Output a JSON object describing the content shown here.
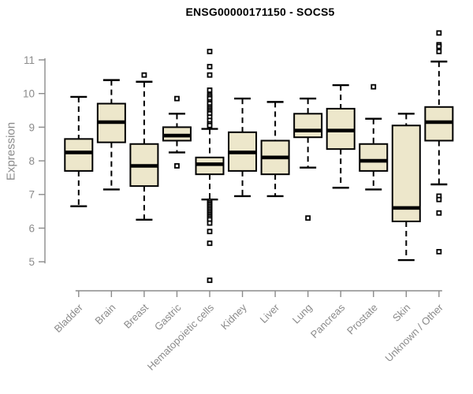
{
  "window": {
    "background": "#ffffff"
  },
  "chart_data": {
    "type": "boxplot",
    "title": "ENSG00000171150 - SOCS5",
    "ylabel": "Expression",
    "xlabel": "",
    "ylim": [
      5,
      11
    ],
    "yticks": [
      5,
      6,
      7,
      8,
      9,
      10,
      11
    ],
    "grid": false,
    "legend": null,
    "colors": {
      "box_fill": "#EDE7CB",
      "box_border": "#000000",
      "median": "#000000",
      "whisker": "#000000",
      "axis_line": "#8b8b8b",
      "axis_text": "#8b8b8b",
      "title_text": "#000000"
    },
    "categories": [
      "Bladder",
      "Brain",
      "Breast",
      "Gastric",
      "Hematopoietic cells",
      "Kidney",
      "Liver",
      "Lung",
      "Pancreas",
      "Prostate",
      "Skin",
      "Unknown / Other"
    ],
    "boxes": [
      {
        "category": "Bladder",
        "whisker_low": 6.65,
        "q1": 7.7,
        "median": 8.25,
        "q3": 8.65,
        "whisker_high": 9.9,
        "outliers": []
      },
      {
        "category": "Brain",
        "whisker_low": 7.15,
        "q1": 8.55,
        "median": 9.15,
        "q3": 9.7,
        "whisker_high": 10.4,
        "outliers": []
      },
      {
        "category": "Breast",
        "whisker_low": 6.25,
        "q1": 7.25,
        "median": 7.85,
        "q3": 8.5,
        "whisker_high": 10.35,
        "outliers": [
          10.55
        ]
      },
      {
        "category": "Gastric",
        "whisker_low": 8.25,
        "q1": 8.6,
        "median": 8.75,
        "q3": 9.0,
        "whisker_high": 9.4,
        "outliers": [
          9.85,
          7.85
        ]
      },
      {
        "category": "Hematopoietic cells",
        "whisker_low": 6.85,
        "q1": 7.6,
        "median": 7.9,
        "q3": 8.1,
        "whisker_high": 8.95,
        "outliers": [
          11.25,
          10.8,
          10.55,
          10.1,
          9.95,
          9.9,
          9.85,
          9.75,
          9.7,
          9.6,
          9.55,
          9.5,
          9.45,
          9.4,
          9.3,
          9.2,
          9.1,
          9.05,
          6.8,
          6.75,
          6.7,
          6.65,
          6.6,
          6.55,
          6.5,
          6.45,
          6.4,
          6.35,
          6.3,
          6.25,
          6.15,
          5.9,
          5.55,
          4.45
        ]
      },
      {
        "category": "Kidney",
        "whisker_low": 6.95,
        "q1": 7.7,
        "median": 8.25,
        "q3": 8.85,
        "whisker_high": 9.85,
        "outliers": []
      },
      {
        "category": "Liver",
        "whisker_low": 6.95,
        "q1": 7.6,
        "median": 8.1,
        "q3": 8.6,
        "whisker_high": 9.75,
        "outliers": []
      },
      {
        "category": "Lung",
        "whisker_low": 7.8,
        "q1": 8.7,
        "median": 8.9,
        "q3": 9.4,
        "whisker_high": 9.85,
        "outliers": [
          6.3
        ]
      },
      {
        "category": "Pancreas",
        "whisker_low": 7.2,
        "q1": 8.35,
        "median": 8.9,
        "q3": 9.55,
        "whisker_high": 10.25,
        "outliers": []
      },
      {
        "category": "Prostate",
        "whisker_low": 7.15,
        "q1": 7.7,
        "median": 8.0,
        "q3": 8.5,
        "whisker_high": 9.25,
        "outliers": [
          10.2
        ]
      },
      {
        "category": "Skin",
        "whisker_low": 5.05,
        "q1": 6.2,
        "median": 6.6,
        "q3": 9.05,
        "whisker_high": 9.4,
        "outliers": []
      },
      {
        "category": "Unknown / Other",
        "whisker_low": 7.3,
        "q1": 8.6,
        "median": 9.15,
        "q3": 9.6,
        "whisker_high": 10.95,
        "outliers": [
          11.8,
          11.45,
          11.4,
          11.25,
          6.95,
          6.85,
          6.45,
          5.3
        ]
      }
    ]
  }
}
